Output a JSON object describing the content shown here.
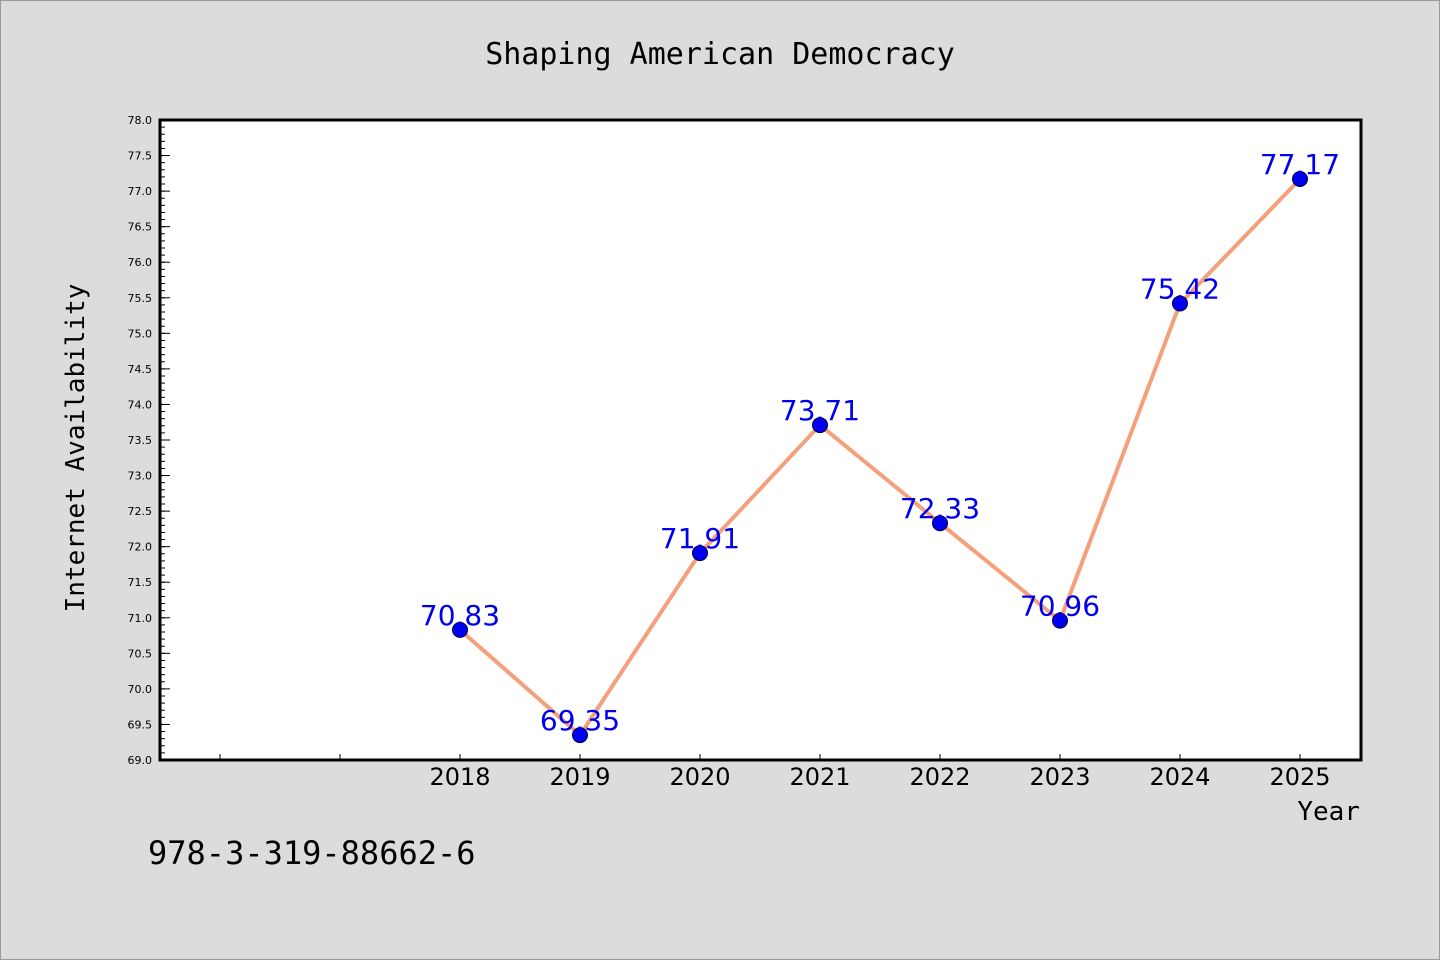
{
  "footer": {
    "isbn": "978-3-319-88662-6"
  },
  "colors": {
    "background": "#dcdcdc",
    "line": "#f4a07c",
    "marker": "#0000ee",
    "label": "#0000ee"
  },
  "chart_data": {
    "type": "line",
    "title": "Shaping American Democracy",
    "xlabel": "Year",
    "ylabel": "Internet Availability",
    "categories": [
      "2018",
      "2019",
      "2020",
      "2021",
      "2022",
      "2023",
      "2024",
      "2025"
    ],
    "series": [
      {
        "values": [
          70.83,
          69.35,
          71.91,
          73.71,
          72.33,
          70.96,
          75.42,
          77.17
        ]
      }
    ],
    "data_labels": [
      "70.83",
      "69.35",
      "71.91",
      "73.71",
      "72.33",
      "70.96",
      "75.42",
      "77.17"
    ],
    "ylim": [
      69.0,
      78.0
    ],
    "yticks": [
      "69.0",
      "69.5",
      "70.0",
      "70.5",
      "71.0",
      "71.5",
      "72.0",
      "72.5",
      "73.0",
      "73.5",
      "74.0",
      "74.5",
      "75.0",
      "75.5",
      "76.0",
      "76.5",
      "77.0",
      "77.5",
      "78.0"
    ],
    "grid": false,
    "legend": "none"
  }
}
